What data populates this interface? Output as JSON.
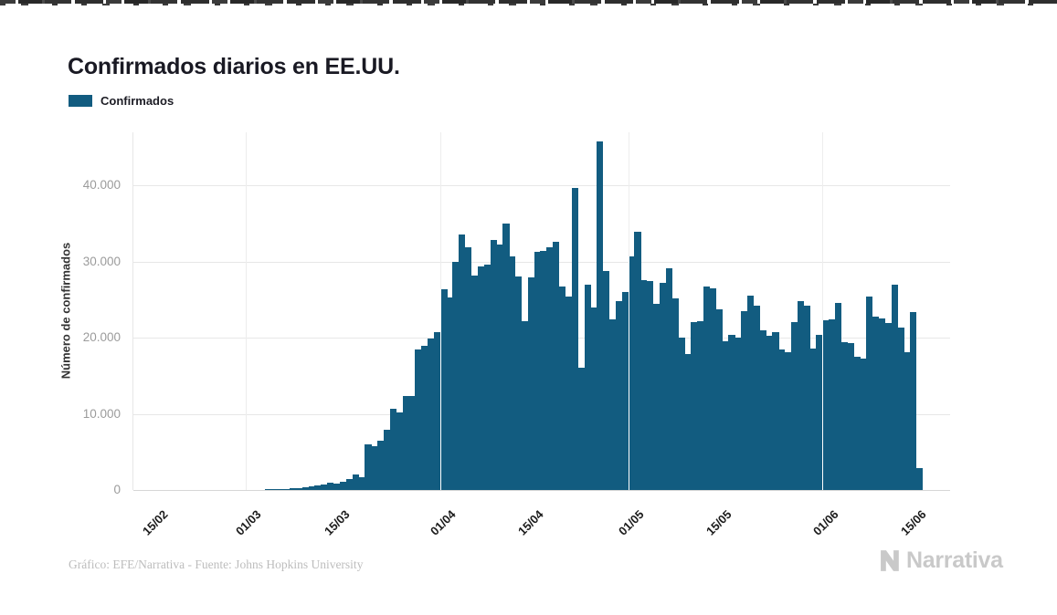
{
  "header": {
    "title": "Confirmados diarios en EE.UU."
  },
  "legend": {
    "label": "Confirmados",
    "swatch_color": "#125c80"
  },
  "footer": {
    "credit": "Gráfico: EFE/Narrativa - Fuente: Johns Hopkins University",
    "brand": "Narrativa"
  },
  "chart_data": {
    "type": "bar",
    "title": "Confirmados diarios en EE.UU.",
    "series_name": "Confirmados",
    "xlabel": "",
    "ylabel": "Número de confirmados",
    "bar_color": "#125c80",
    "grid": true,
    "legend_position": "top-left",
    "ylim": [
      0,
      46900
    ],
    "y_ticks": [
      {
        "value": 0,
        "label": "0"
      },
      {
        "value": 10000,
        "label": "10.000"
      },
      {
        "value": 20000,
        "label": "20.000"
      },
      {
        "value": 30000,
        "label": "30.000"
      },
      {
        "value": 40000,
        "label": "40.000"
      }
    ],
    "x_ticks": [
      "15/02",
      "01/03",
      "15/03",
      "01/04",
      "15/04",
      "01/05",
      "15/05",
      "01/06",
      "15/06"
    ],
    "month_gridlines": [
      "01/03",
      "01/04",
      "01/05",
      "01/06"
    ],
    "dates": [
      "12/02",
      "13/02",
      "14/02",
      "15/02",
      "16/02",
      "17/02",
      "18/02",
      "19/02",
      "20/02",
      "21/02",
      "22/02",
      "23/02",
      "24/02",
      "25/02",
      "26/02",
      "27/02",
      "28/02",
      "29/02",
      "01/03",
      "02/03",
      "03/03",
      "04/03",
      "05/03",
      "06/03",
      "07/03",
      "08/03",
      "09/03",
      "10/03",
      "11/03",
      "12/03",
      "13/03",
      "14/03",
      "15/03",
      "16/03",
      "17/03",
      "18/03",
      "19/03",
      "20/03",
      "21/03",
      "22/03",
      "23/03",
      "24/03",
      "25/03",
      "26/03",
      "27/03",
      "28/03",
      "29/03",
      "30/03",
      "31/03",
      "01/04",
      "02/04",
      "03/04",
      "04/04",
      "05/04",
      "06/04",
      "07/04",
      "08/04",
      "09/04",
      "10/04",
      "11/04",
      "12/04",
      "13/04",
      "14/04",
      "15/04",
      "16/04",
      "17/04",
      "18/04",
      "19/04",
      "20/04",
      "21/04",
      "22/04",
      "23/04",
      "24/04",
      "25/04",
      "26/04",
      "27/04",
      "28/04",
      "29/04",
      "30/04",
      "01/05",
      "02/05",
      "03/05",
      "04/05",
      "05/05",
      "06/05",
      "07/05",
      "08/05",
      "09/05",
      "10/05",
      "11/05",
      "12/05",
      "13/05",
      "14/05",
      "15/05",
      "16/05",
      "17/05",
      "18/05",
      "19/05",
      "20/05",
      "21/05",
      "22/05",
      "23/05",
      "24/05",
      "25/05",
      "26/05",
      "27/05",
      "28/05",
      "29/05",
      "30/05",
      "31/05",
      "01/06",
      "02/06",
      "03/06",
      "04/06",
      "05/06",
      "06/06",
      "07/06",
      "08/06",
      "09/06",
      "10/06",
      "11/06",
      "12/06",
      "13/06",
      "14/06",
      "15/06",
      "16/06"
    ],
    "values": [
      2,
      1,
      2,
      3,
      2,
      4,
      3,
      5,
      4,
      6,
      8,
      10,
      12,
      14,
      16,
      18,
      22,
      25,
      30,
      40,
      60,
      80,
      110,
      150,
      180,
      230,
      300,
      400,
      500,
      600,
      750,
      900,
      850,
      1100,
      1400,
      2000,
      1700,
      6000,
      5700,
      6500,
      7900,
      10600,
      10200,
      12300,
      12300,
      18400,
      18900,
      19900,
      20700,
      26300,
      25300,
      29900,
      33500,
      31900,
      28200,
      29400,
      29600,
      32800,
      32200,
      35000,
      30600,
      28000,
      22100,
      27900,
      31200,
      31400,
      31900,
      32600,
      26700,
      25400,
      39600,
      16000,
      26900,
      23900,
      45800,
      28700,
      22400,
      24800,
      26000,
      30700,
      33900,
      27500,
      27400,
      24400,
      27200,
      29100,
      25200,
      20000,
      17800,
      22000,
      22200,
      26700,
      26500,
      23700,
      19500,
      20400,
      20000,
      23500,
      25500,
      24200,
      20900,
      20200,
      20700,
      18400,
      18100,
      22000,
      24800,
      24200,
      18600,
      20400,
      22300,
      22400,
      24500,
      19400,
      19300,
      17500,
      17200,
      25400,
      22700,
      22500,
      21900,
      27000,
      21300,
      18100,
      23300,
      2850
    ]
  }
}
